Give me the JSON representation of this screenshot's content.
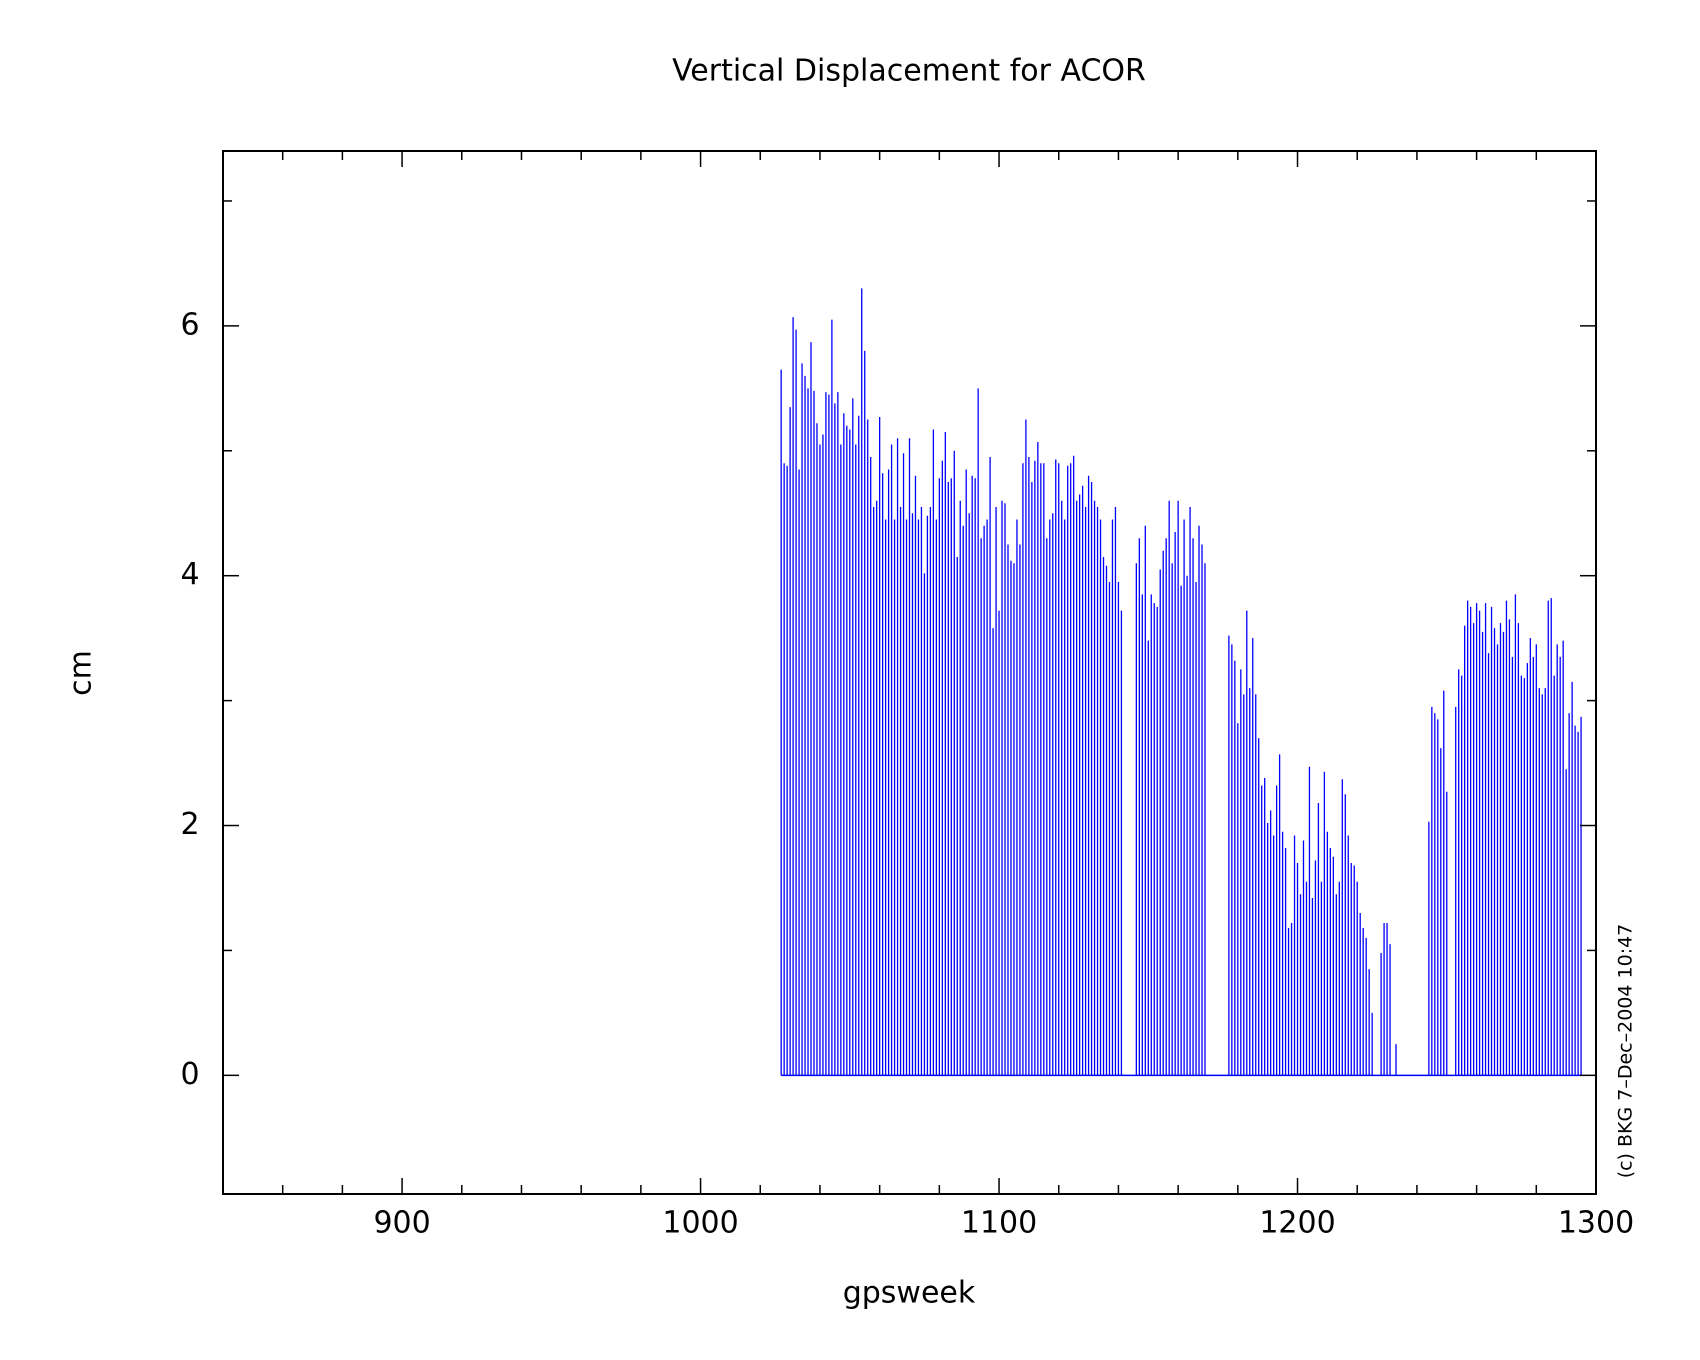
{
  "chart_data": {
    "type": "stem",
    "title": "Vertical Displacement for ACOR",
    "xlabel": "gpsweek",
    "ylabel": "cm",
    "footnote": "(c) BKG 7–Dec–2004 10:47",
    "color": "#0000ff",
    "xlim": [
      840,
      1300
    ],
    "ylim": [
      -0.95,
      7.4
    ],
    "xticks": [
      900,
      1000,
      1100,
      1200,
      1300
    ],
    "xminorticks": [
      860,
      880,
      920,
      940,
      960,
      980,
      1020,
      1040,
      1060,
      1080,
      1120,
      1140,
      1160,
      1180,
      1220,
      1240,
      1260,
      1280
    ],
    "yticks": [
      0,
      2,
      4,
      6
    ],
    "yminorticks": [
      1,
      3,
      5,
      7
    ],
    "x": [
      1027,
      1028,
      1029,
      1030,
      1031,
      1032,
      1033,
      1034,
      1035,
      1036,
      1037,
      1038,
      1039,
      1040,
      1041,
      1042,
      1043,
      1044,
      1045,
      1046,
      1047,
      1048,
      1049,
      1050,
      1051,
      1052,
      1053,
      1054,
      1055,
      1056,
      1057,
      1058,
      1059,
      1060,
      1061,
      1062,
      1063,
      1064,
      1065,
      1066,
      1067,
      1068,
      1069,
      1070,
      1071,
      1072,
      1073,
      1074,
      1075,
      1076,
      1077,
      1078,
      1079,
      1080,
      1081,
      1082,
      1083,
      1084,
      1085,
      1086,
      1087,
      1088,
      1089,
      1090,
      1091,
      1092,
      1093,
      1094,
      1095,
      1096,
      1097,
      1098,
      1099,
      1100,
      1101,
      1102,
      1103,
      1104,
      1105,
      1106,
      1107,
      1108,
      1109,
      1110,
      1111,
      1112,
      1113,
      1114,
      1115,
      1116,
      1117,
      1118,
      1119,
      1120,
      1121,
      1122,
      1123,
      1124,
      1125,
      1126,
      1127,
      1128,
      1129,
      1130,
      1131,
      1132,
      1133,
      1134,
      1135,
      1136,
      1137,
      1138,
      1139,
      1140,
      1141,
      1142,
      1143,
      1144,
      1145,
      1146,
      1147,
      1148,
      1149,
      1150,
      1151,
      1152,
      1153,
      1154,
      1155,
      1156,
      1157,
      1158,
      1159,
      1160,
      1161,
      1162,
      1163,
      1164,
      1165,
      1166,
      1167,
      1168,
      1169,
      1170,
      1171,
      1172,
      1173,
      1174,
      1175,
      1176,
      1177,
      1178,
      1179,
      1180,
      1181,
      1182,
      1183,
      1184,
      1185,
      1186,
      1187,
      1188,
      1189,
      1190,
      1191,
      1192,
      1193,
      1194,
      1195,
      1196,
      1197,
      1198,
      1199,
      1200,
      1201,
      1202,
      1203,
      1204,
      1205,
      1206,
      1207,
      1208,
      1209,
      1210,
      1211,
      1212,
      1213,
      1214,
      1215,
      1216,
      1217,
      1218,
      1219,
      1220,
      1221,
      1222,
      1223,
      1224,
      1225,
      1226,
      1227,
      1228,
      1229,
      1230,
      1231,
      1232,
      1233,
      1234,
      1235,
      1236,
      1237,
      1238,
      1239,
      1240,
      1241,
      1242,
      1243,
      1244,
      1245,
      1246,
      1247,
      1248,
      1249,
      1250,
      1251,
      1252,
      1253,
      1254,
      1255,
      1256,
      1257,
      1258,
      1259,
      1260,
      1261,
      1262,
      1263,
      1264,
      1265,
      1266,
      1267,
      1268,
      1269,
      1270,
      1271,
      1272,
      1273,
      1274,
      1275,
      1276,
      1277,
      1278,
      1279,
      1280,
      1281,
      1282,
      1283,
      1284,
      1285,
      1286,
      1287,
      1288,
      1289,
      1290,
      1291,
      1292,
      1293,
      1294,
      1295
    ],
    "values": [
      5.65,
      4.9,
      4.88,
      5.35,
      6.07,
      5.97,
      4.85,
      5.7,
      5.6,
      5.5,
      5.87,
      5.48,
      5.22,
      5.05,
      5.13,
      5.47,
      5.45,
      6.05,
      5.38,
      5.47,
      5.05,
      5.3,
      5.2,
      5.17,
      5.42,
      5.05,
      5.28,
      6.3,
      5.8,
      5.25,
      4.95,
      4.55,
      4.6,
      5.27,
      4.82,
      4.45,
      4.85,
      5.05,
      4.45,
      5.1,
      4.55,
      4.98,
      4.45,
      5.1,
      4.5,
      4.8,
      4.45,
      4.55,
      4.02,
      4.48,
      4.55,
      5.17,
      4.45,
      4.78,
      4.92,
      5.15,
      4.75,
      4.78,
      5.0,
      4.15,
      4.6,
      4.4,
      4.85,
      4.5,
      4.8,
      4.78,
      5.5,
      4.3,
      4.4,
      4.45,
      4.95,
      3.58,
      4.55,
      3.72,
      4.6,
      4.58,
      4.25,
      4.12,
      4.1,
      4.45,
      4.25,
      4.9,
      5.25,
      4.95,
      4.75,
      4.92,
      5.07,
      4.9,
      4.9,
      4.3,
      4.45,
      4.5,
      4.93,
      4.9,
      4.6,
      4.45,
      4.88,
      4.9,
      4.96,
      4.6,
      4.65,
      4.72,
      4.55,
      4.8,
      4.75,
      4.6,
      4.55,
      4.45,
      4.15,
      4.08,
      3.95,
      4.45,
      4.55,
      3.95,
      3.72,
      null,
      null,
      null,
      null,
      4.1,
      4.3,
      3.85,
      4.4,
      3.48,
      3.85,
      3.78,
      3.75,
      4.05,
      4.2,
      4.3,
      4.6,
      4.1,
      4.35,
      4.6,
      3.92,
      4.45,
      4.0,
      4.55,
      4.3,
      3.95,
      4.4,
      4.25,
      4.1,
      null,
      null,
      null,
      null,
      null,
      null,
      null,
      3.52,
      3.45,
      3.32,
      2.82,
      3.25,
      3.05,
      3.72,
      3.1,
      3.5,
      3.05,
      2.7,
      2.32,
      2.38,
      2.02,
      2.12,
      1.92,
      2.32,
      2.57,
      1.95,
      1.82,
      1.18,
      1.22,
      1.92,
      1.7,
      1.45,
      1.88,
      1.55,
      2.47,
      1.42,
      1.72,
      2.18,
      1.55,
      2.43,
      1.95,
      1.82,
      1.75,
      1.45,
      1.55,
      2.37,
      2.25,
      1.92,
      1.7,
      1.68,
      1.55,
      1.3,
      1.18,
      1.1,
      0.85,
      0.5,
      null,
      null,
      0.98,
      1.22,
      1.22,
      1.05,
      null,
      0.25,
      null,
      null,
      null,
      null,
      null,
      null,
      null,
      null,
      null,
      null,
      2.03,
      2.95,
      2.9,
      2.85,
      2.62,
      3.08,
      2.27,
      null,
      null,
      2.95,
      3.25,
      3.2,
      3.6,
      3.8,
      3.75,
      3.62,
      3.78,
      3.72,
      3.55,
      3.78,
      3.38,
      3.75,
      3.58,
      3.45,
      3.62,
      3.55,
      3.8,
      3.65,
      3.35,
      3.85,
      3.62,
      3.2,
      3.18,
      3.3,
      3.5,
      3.35,
      3.45,
      3.1,
      3.05,
      3.1,
      3.8,
      3.82,
      3.2,
      3.45,
      3.35,
      3.48,
      2.45,
      2.9,
      3.15,
      2.8,
      2.75,
      2.87
    ]
  }
}
